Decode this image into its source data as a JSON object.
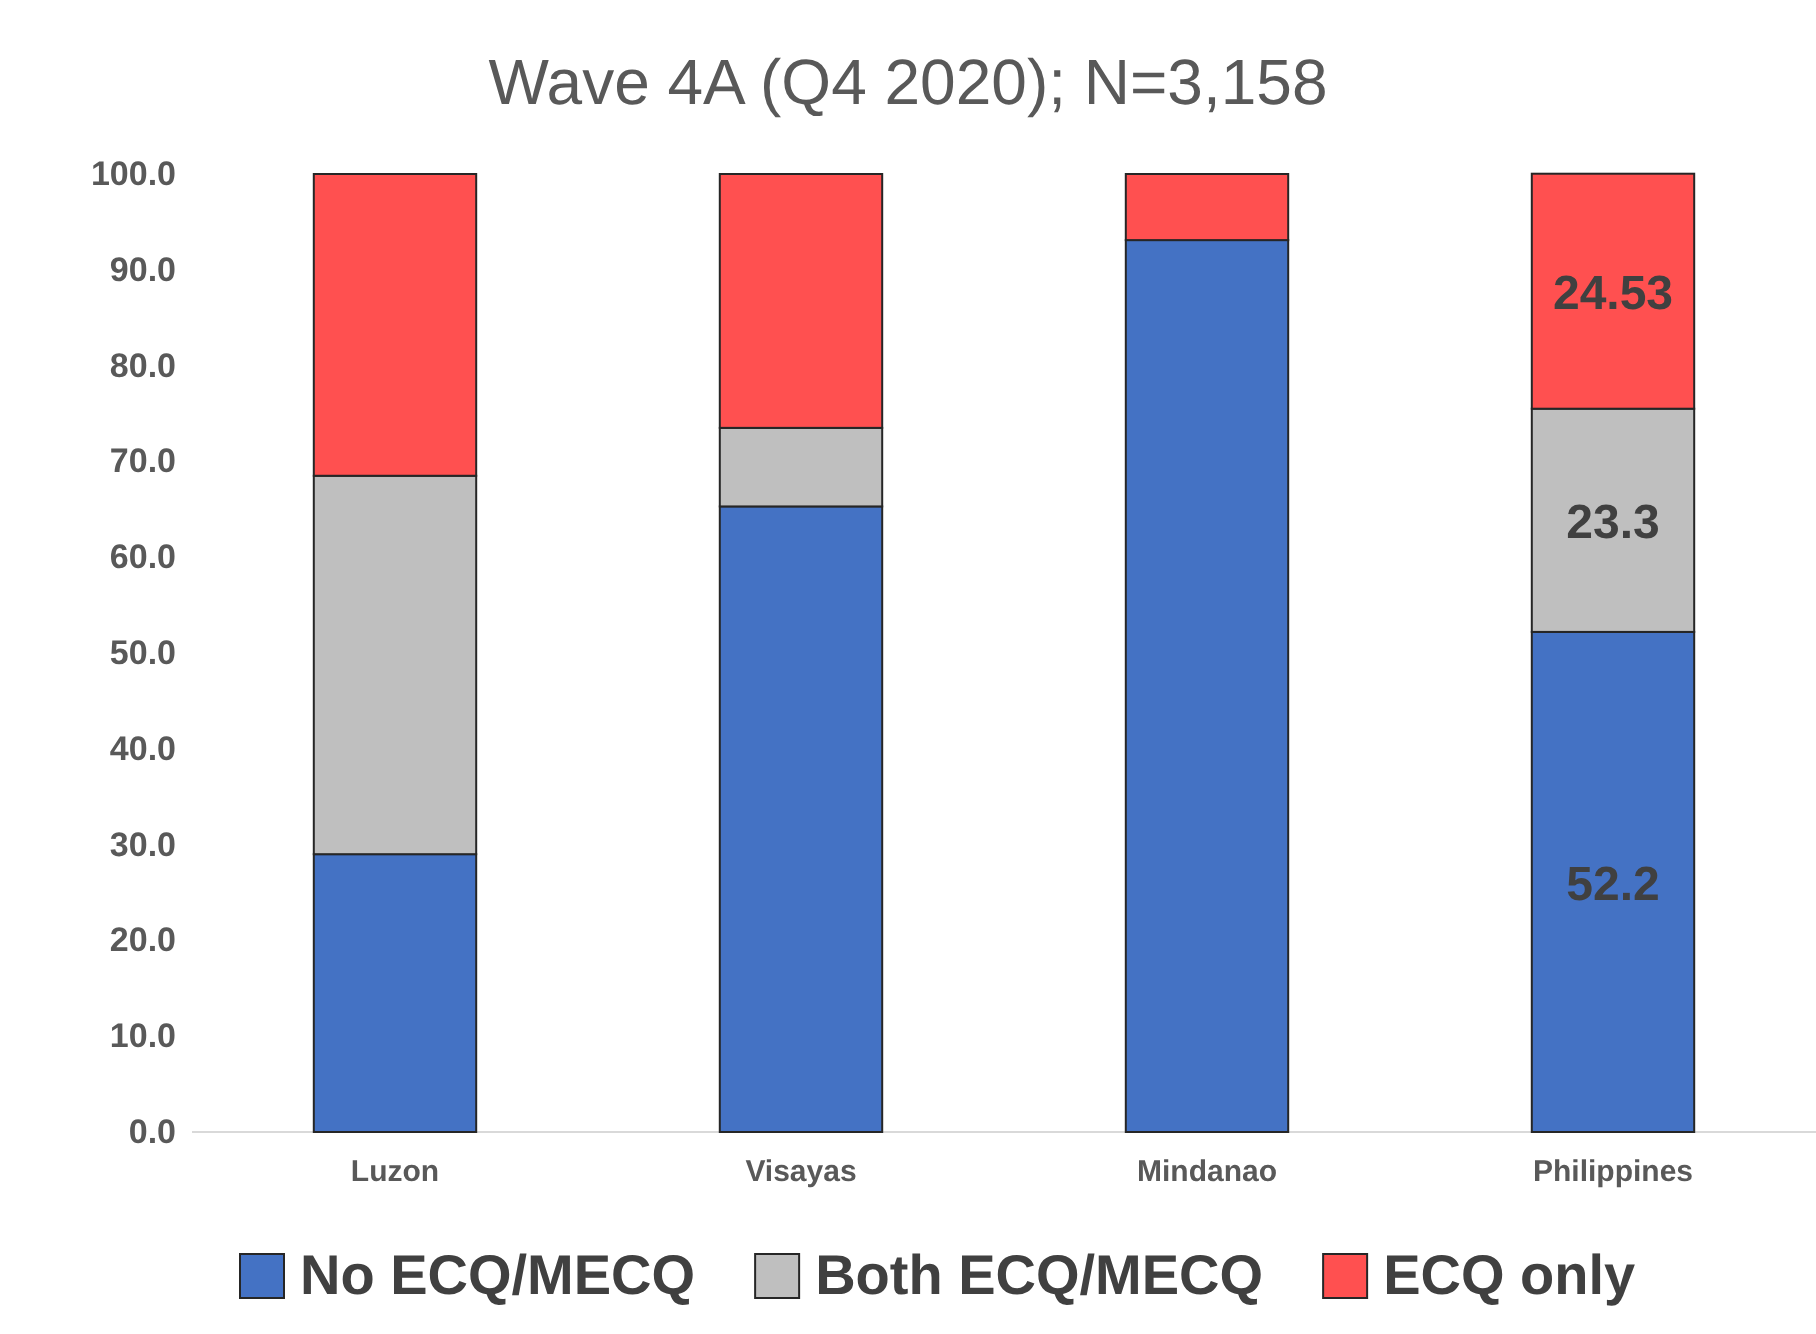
{
  "chart_data": {
    "type": "bar",
    "title": "Wave 4A (Q4 2020); N=3,158",
    "stacked": true,
    "categories": [
      "Luzon",
      "Visayas",
      "Mindanao",
      "Philippines"
    ],
    "series": [
      {
        "name": "No ECQ/MECQ",
        "color": "#4472c4",
        "values": [
          29.0,
          65.3,
          93.1,
          52.2
        ],
        "value_labels": [
          null,
          null,
          null,
          "52.2"
        ]
      },
      {
        "name": "Both ECQ/MECQ",
        "color": "#bfbfbf",
        "values": [
          39.5,
          8.2,
          0,
          23.3
        ],
        "value_labels": [
          null,
          null,
          null,
          "23.3"
        ]
      },
      {
        "name": "ECQ only",
        "color": "#ff5050",
        "values": [
          31.5,
          26.5,
          6.9,
          24.53
        ],
        "value_labels": [
          null,
          null,
          null,
          "24.53"
        ]
      }
    ],
    "ylim": [
      0,
      100
    ],
    "yticks": [
      {
        "value": 0,
        "label": "0.0"
      },
      {
        "value": 10,
        "label": "10.0"
      },
      {
        "value": 20,
        "label": "20.0"
      },
      {
        "value": 30,
        "label": "30.0"
      },
      {
        "value": 40,
        "label": "40.0"
      },
      {
        "value": 50,
        "label": "50.0"
      },
      {
        "value": 60,
        "label": "60.0"
      },
      {
        "value": 70,
        "label": "70.0"
      },
      {
        "value": 80,
        "label": "80.0"
      },
      {
        "value": 90,
        "label": "90.0"
      },
      {
        "value": 100,
        "label": "100.0"
      }
    ],
    "legend": "bottom"
  }
}
